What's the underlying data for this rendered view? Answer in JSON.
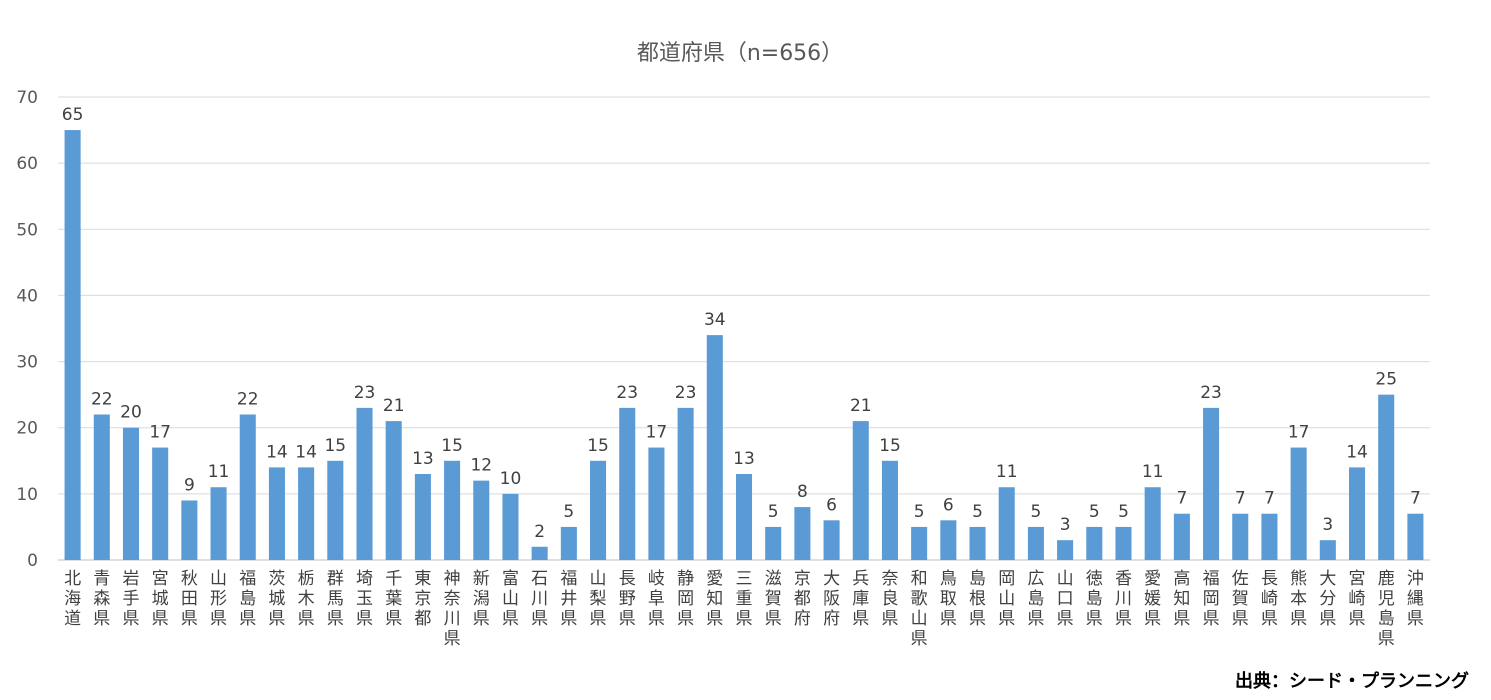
{
  "chart_data": {
    "type": "bar",
    "title": "都道府県（n=656）",
    "xlabel": "",
    "ylabel": "",
    "ylim": [
      0,
      70
    ],
    "yticks": [
      0,
      10,
      20,
      30,
      40,
      50,
      60,
      70
    ],
    "grid": true,
    "bar_color": "#5B9BD5",
    "categories": [
      "北海道",
      "青森県",
      "岩手県",
      "宮城県",
      "秋田県",
      "山形県",
      "福島県",
      "茨城県",
      "栃木県",
      "群馬県",
      "埼玉県",
      "千葉県",
      "東京都",
      "神奈川県",
      "新潟県",
      "富山県",
      "石川県",
      "福井県",
      "山梨県",
      "長野県",
      "岐阜県",
      "静岡県",
      "愛知県",
      "三重県",
      "滋賀県",
      "京都府",
      "大阪府",
      "兵庫県",
      "奈良県",
      "和歌山県",
      "鳥取県",
      "島根県",
      "岡山県",
      "広島県",
      "山口県",
      "徳島県",
      "香川県",
      "愛媛県",
      "高知県",
      "福岡県",
      "佐賀県",
      "長崎県",
      "熊本県",
      "大分県",
      "宮崎県",
      "鹿児島県",
      "沖縄県"
    ],
    "values": [
      65,
      22,
      20,
      17,
      9,
      11,
      22,
      14,
      14,
      15,
      23,
      21,
      13,
      15,
      12,
      10,
      2,
      5,
      15,
      23,
      17,
      23,
      34,
      13,
      5,
      8,
      6,
      21,
      15,
      5,
      6,
      5,
      11,
      5,
      3,
      5,
      5,
      11,
      7,
      23,
      7,
      7,
      17,
      3,
      14,
      25,
      7
    ]
  },
  "source_note": "出典：シード・プランニング"
}
